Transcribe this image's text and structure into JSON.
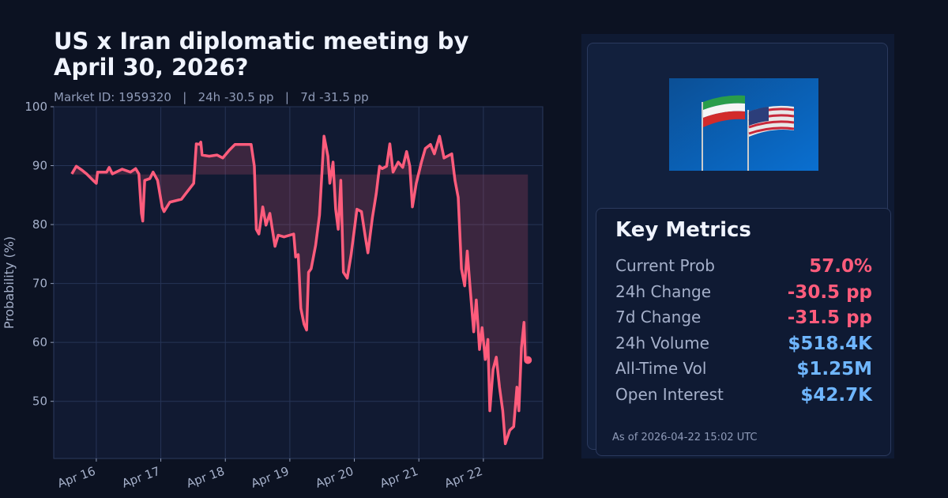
{
  "chart_data": {
    "type": "line",
    "title": "US x Iran diplomatic meeting by April 30, 2026?",
    "subtitle": "Market ID: 1959320   |   24h -30.5 pp   |   7d -31.5 pp",
    "y_label": "Probability (%)",
    "color": "#ff5c7c",
    "reference_value": 88.5,
    "grid": true,
    "xlim": [
      15.34,
      22.92
    ],
    "xticks": [
      {
        "value": 16,
        "label": "Apr 16"
      },
      {
        "value": 17,
        "label": "Apr 17"
      },
      {
        "value": 18,
        "label": "Apr 18"
      },
      {
        "value": 19,
        "label": "Apr 19"
      },
      {
        "value": 20,
        "label": "Apr 20"
      },
      {
        "value": 21,
        "label": "Apr 21"
      },
      {
        "value": 22,
        "label": "Apr 22"
      }
    ],
    "ylim": [
      40.3,
      100
    ],
    "yticks": [
      50,
      60,
      70,
      80,
      90,
      100
    ],
    "x": [
      15.62,
      15.69,
      15.77,
      15.85,
      15.95,
      16.0,
      16.02,
      16.16,
      16.2,
      16.25,
      16.4,
      16.53,
      16.61,
      16.66,
      16.7,
      16.72,
      16.75,
      16.83,
      16.88,
      16.95,
      17.02,
      17.05,
      17.14,
      17.32,
      17.39,
      17.51,
      17.55,
      17.6,
      17.62,
      17.64,
      17.75,
      17.87,
      17.96,
      18.06,
      18.15,
      18.4,
      18.45,
      18.48,
      18.52,
      18.58,
      18.63,
      18.69,
      18.77,
      18.82,
      18.91,
      19.06,
      19.09,
      19.13,
      19.17,
      19.22,
      19.26,
      19.29,
      19.33,
      19.4,
      19.46,
      19.53,
      19.59,
      19.62,
      19.67,
      19.71,
      19.75,
      19.79,
      19.83,
      19.89,
      19.95,
      20.04,
      20.11,
      20.17,
      20.21,
      20.28,
      20.34,
      20.39,
      20.43,
      20.5,
      20.55,
      20.6,
      20.68,
      20.75,
      20.81,
      20.86,
      20.9,
      20.96,
      21.04,
      21.1,
      21.18,
      21.24,
      21.32,
      21.39,
      21.51,
      21.56,
      21.61,
      21.66,
      21.71,
      21.75,
      21.8,
      21.85,
      21.89,
      21.94,
      21.98,
      22.03,
      22.07,
      22.1,
      22.15,
      22.2,
      22.25,
      22.3,
      22.34,
      22.41,
      22.47,
      22.52,
      22.55,
      22.59,
      22.63,
      22.65,
      22.69
    ],
    "values": [
      88.6,
      89.9,
      89.3,
      88.6,
      87.5,
      87.0,
      88.9,
      88.9,
      89.7,
      88.6,
      89.4,
      88.9,
      89.5,
      88.6,
      81.9,
      80.6,
      87.5,
      87.8,
      88.9,
      87.5,
      83.0,
      82.2,
      83.8,
      84.3,
      85.3,
      87.0,
      93.7,
      93.6,
      94.0,
      91.8,
      91.6,
      91.8,
      91.3,
      92.6,
      93.6,
      93.6,
      89.9,
      79.2,
      78.4,
      83.0,
      79.9,
      81.9,
      76.3,
      78.2,
      77.9,
      78.4,
      74.5,
      74.9,
      65.8,
      63.1,
      62.1,
      71.9,
      72.5,
      76.5,
      81.6,
      95.0,
      91.6,
      87.0,
      90.6,
      82.6,
      79.2,
      87.5,
      71.9,
      70.9,
      74.9,
      82.6,
      82.2,
      77.9,
      75.2,
      81.2,
      85.3,
      89.9,
      89.5,
      89.9,
      93.7,
      88.9,
      90.6,
      89.7,
      92.4,
      89.9,
      83.0,
      87.0,
      90.6,
      92.9,
      93.6,
      92.0,
      95.0,
      91.3,
      92.0,
      87.5,
      84.6,
      72.5,
      69.6,
      75.5,
      68.5,
      61.8,
      67.2,
      58.8,
      62.5,
      57.1,
      60.5,
      48.4,
      55.4,
      57.5,
      52.4,
      48.4,
      42.8,
      45.1,
      45.7,
      52.4,
      48.4,
      59.1,
      63.4,
      57.1,
      57.0
    ]
  },
  "card": {
    "title": "Key Metrics",
    "metrics": [
      {
        "label": "Current Prob",
        "value": "57.0%",
        "color": "#ff5c7c"
      },
      {
        "label": "24h Change",
        "value": "-30.5 pp",
        "color": "#ff5c7c"
      },
      {
        "label": "7d Change",
        "value": "-31.5 pp",
        "color": "#ff5c7c"
      },
      {
        "label": "24h Volume",
        "value": "$518.4K",
        "color": "#6fb6ff"
      },
      {
        "label": "All-Time Vol",
        "value": "$1.25M",
        "color": "#6fb6ff"
      },
      {
        "label": "Open Interest",
        "value": "$42.7K",
        "color": "#6fb6ff"
      }
    ],
    "timestamp": "As of 2026-04-22 15:02 UTC"
  }
}
